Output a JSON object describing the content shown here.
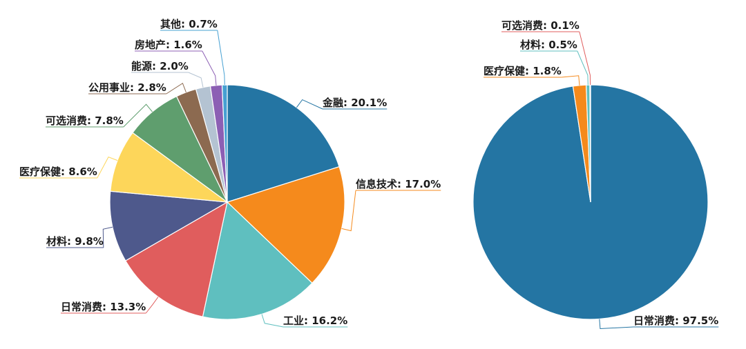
{
  "chart_data": [
    {
      "type": "pie",
      "slices": [
        {
          "label": "金融",
          "value": 20.1,
          "display": "金融: 20.1%",
          "color": "#2475a3"
        },
        {
          "label": "信息技术",
          "value": 17.0,
          "display": "信息技术: 17.0%",
          "color": "#f58a1c"
        },
        {
          "label": "工业",
          "value": 16.2,
          "display": "工业: 16.2%",
          "color": "#5fbfbf"
        },
        {
          "label": "日常消费",
          "value": 13.3,
          "display": "日常消费: 13.3%",
          "color": "#e05d5d"
        },
        {
          "label": "材料",
          "value": 9.8,
          "display": "材料: 9.8%",
          "color": "#4e598c"
        },
        {
          "label": "医疗保健",
          "value": 8.6,
          "display": "医疗保健: 8.6%",
          "color": "#fdd65a"
        },
        {
          "label": "可选消费",
          "value": 7.8,
          "display": "可选消费: 7.8%",
          "color": "#5f9e6e"
        },
        {
          "label": "公用事业",
          "value": 2.8,
          "display": "公用事业: 2.8%",
          "color": "#8c6a50"
        },
        {
          "label": "能源",
          "value": 2.0,
          "display": "能源: 2.0%",
          "color": "#b4c3d2"
        },
        {
          "label": "房地产",
          "value": 1.6,
          "display": "房地产: 1.6%",
          "color": "#8c5fb4"
        },
        {
          "label": "其他",
          "value": 0.7,
          "display": "其他: 0.7%",
          "color": "#46a0d2"
        }
      ]
    },
    {
      "type": "pie",
      "slices": [
        {
          "label": "日常消费",
          "value": 97.5,
          "display": "日常消费: 97.5%",
          "color": "#2475a3"
        },
        {
          "label": "医疗保健",
          "value": 1.8,
          "display": "医疗保健: 1.8%",
          "color": "#f58a1c"
        },
        {
          "label": "材料",
          "value": 0.5,
          "display": "材料: 0.5%",
          "color": "#5fbfbf"
        },
        {
          "label": "可选消费",
          "value": 0.1,
          "display": "可选消费: 0.1%",
          "color": "#e05d5d"
        }
      ]
    }
  ]
}
